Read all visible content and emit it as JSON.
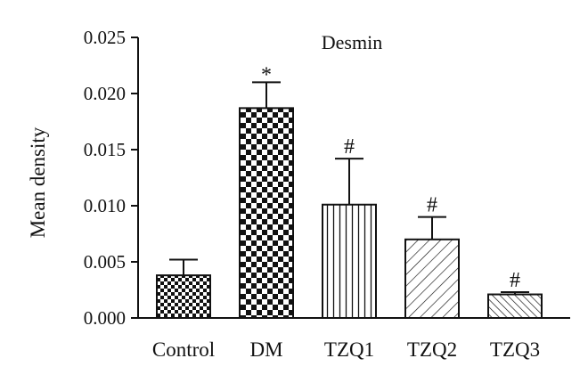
{
  "chart_data": {
    "type": "bar",
    "title": "Desmin",
    "xlabel": "",
    "ylabel": "Mean density",
    "ylim": [
      0,
      0.025
    ],
    "yticks": [
      "0.000",
      "0.005",
      "0.010",
      "0.015",
      "0.020",
      "0.025"
    ],
    "categories": [
      "Control",
      "DM",
      "TZQ1",
      "TZQ2",
      "TZQ3"
    ],
    "values": [
      0.0038,
      0.0187,
      0.0101,
      0.007,
      0.0021
    ],
    "error_upper": [
      0.0014,
      0.0023,
      0.0041,
      0.002,
      0.0002
    ],
    "annotations": [
      "",
      "*",
      "#",
      "#",
      "#"
    ],
    "patterns": [
      "checker-small",
      "checker-large",
      "vertical-lines",
      "diagonal-lines",
      "diagonal-lines-dense"
    ],
    "grid": false,
    "legend": "none"
  }
}
